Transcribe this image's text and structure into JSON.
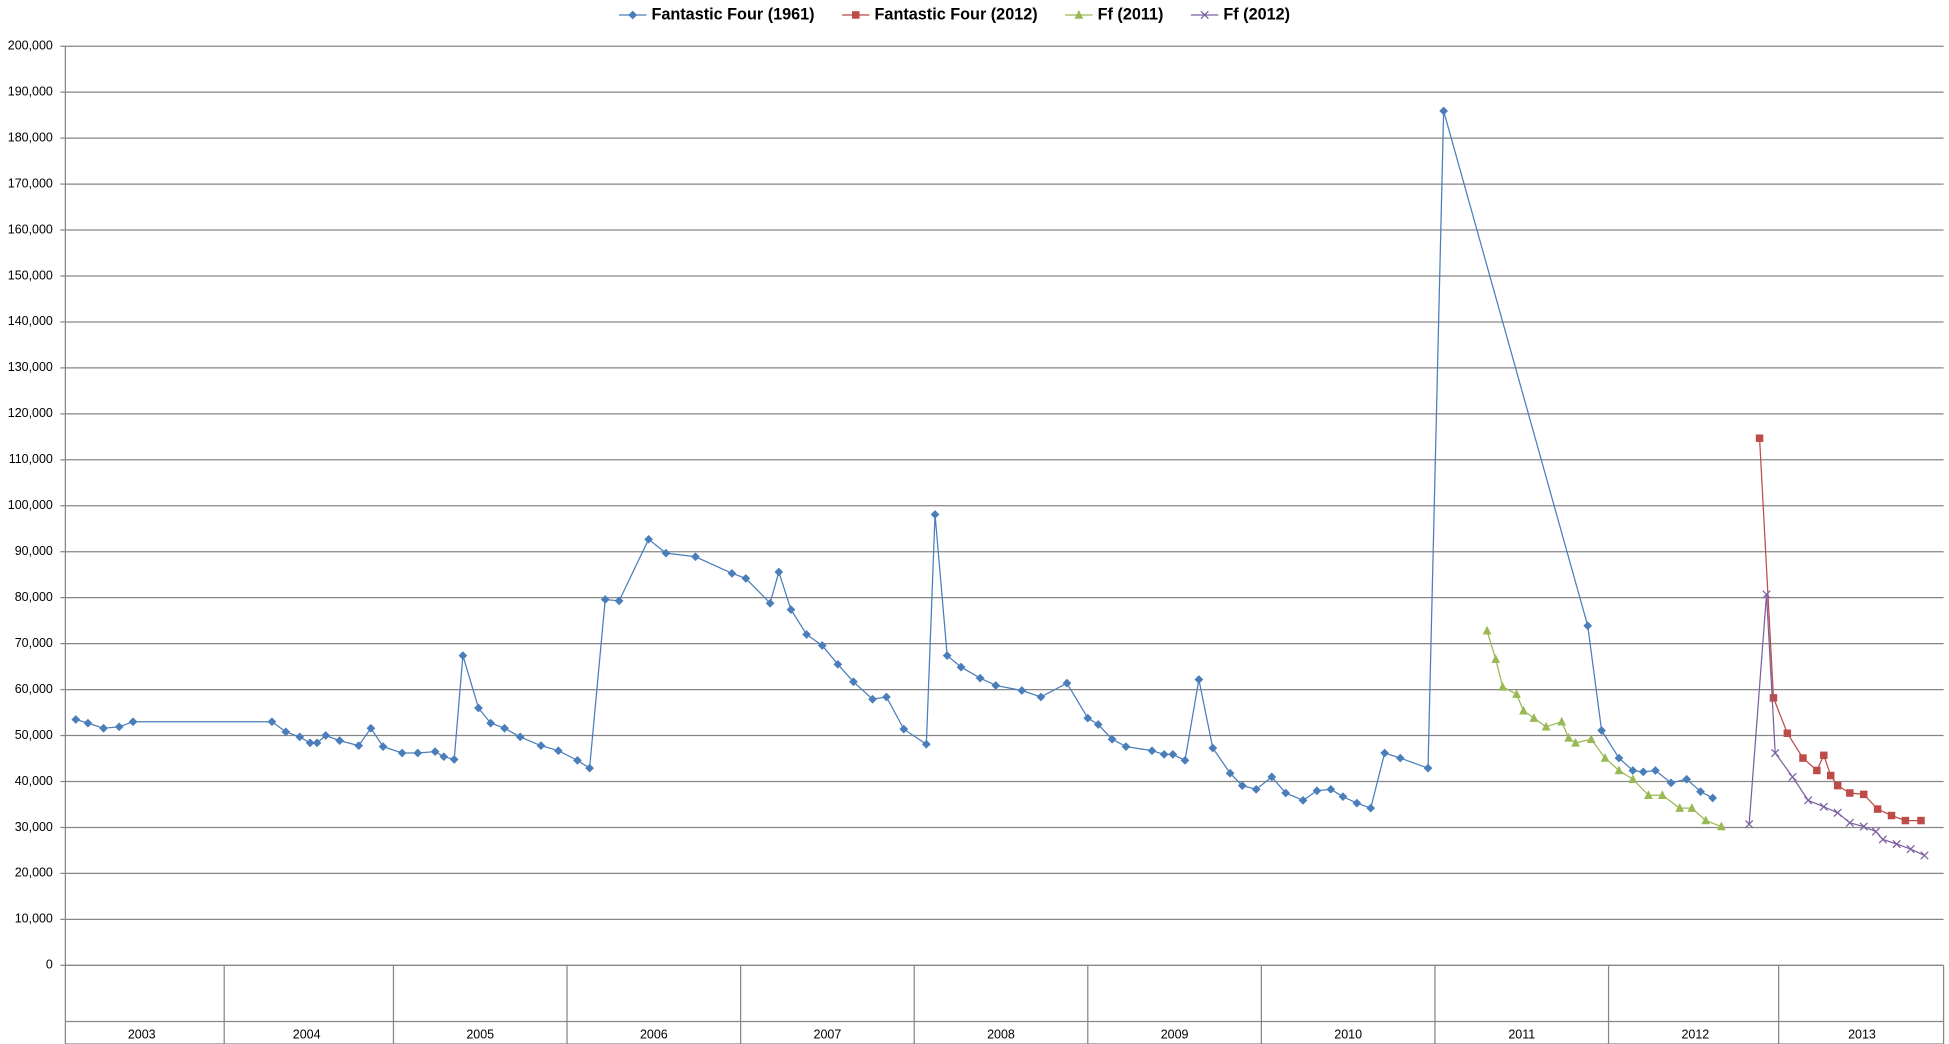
{
  "chart_data": {
    "type": "line",
    "xlim": [
      2003.11,
      2013.93
    ],
    "xticks": [
      {
        "value": 2003.55,
        "label": "2003"
      },
      {
        "value": 2004.5,
        "label": "2004"
      },
      {
        "value": 2005.5,
        "label": "2005"
      },
      {
        "value": 2006.5,
        "label": "2006"
      },
      {
        "value": 2007.5,
        "label": "2007"
      },
      {
        "value": 2008.5,
        "label": "2008"
      },
      {
        "value": 2009.5,
        "label": "2009"
      },
      {
        "value": 2010.5,
        "label": "2010"
      },
      {
        "value": 2011.5,
        "label": "2011"
      },
      {
        "value": 2012.5,
        "label": "2012"
      },
      {
        "value": 2013.46,
        "label": "2013"
      }
    ],
    "ylim": [
      0,
      200000
    ],
    "yticks": [
      0,
      {
        "value": 10000,
        "label": "10,000"
      },
      {
        "value": 20000,
        "label": "20,000"
      },
      {
        "value": 30000,
        "label": "30,000"
      },
      {
        "value": 40000,
        "label": "40,000"
      },
      {
        "value": 50000,
        "label": "50,000"
      },
      {
        "value": 60000,
        "label": "60,000"
      },
      {
        "value": 70000,
        "label": "70,000"
      },
      {
        "value": 80000,
        "label": "80,000"
      },
      {
        "value": 90000,
        "label": "90,000"
      },
      {
        "value": 100000,
        "label": "100,000"
      },
      {
        "value": 110000,
        "label": "110,000"
      },
      {
        "value": 120000,
        "label": "120,000"
      },
      {
        "value": 130000,
        "label": "130,000"
      },
      {
        "value": 140000,
        "label": "140,000"
      },
      {
        "value": 150000,
        "label": "150,000"
      },
      {
        "value": 160000,
        "label": "160,000"
      },
      {
        "value": 170000,
        "label": "170,000"
      },
      {
        "value": 180000,
        "label": "180,000"
      },
      {
        "value": 190000,
        "label": "190,000"
      },
      {
        "value": 200000,
        "label": "200,000"
      }
    ],
    "grid": true,
    "legend": "top",
    "series": [
      {
        "name": "Fantastic Four (1961)",
        "color": "#4a7ebb",
        "marker": "diamond",
        "x": [
          2003.17,
          2003.24,
          2003.33,
          2003.42,
          2003.5,
          2004.3,
          2004.38,
          2004.46,
          2004.52,
          2004.56,
          2004.61,
          2004.69,
          2004.8,
          2004.87,
          2004.94,
          2005.05,
          2005.14,
          2005.24,
          2005.29,
          2005.35,
          2005.4,
          2005.49,
          2005.56,
          2005.64,
          2005.73,
          2005.85,
          2005.95,
          2006.06,
          2006.13,
          2006.22,
          2006.3,
          2006.47,
          2006.57,
          2006.74,
          2006.95,
          2007.03,
          2007.17,
          2007.22,
          2007.29,
          2007.38,
          2007.47,
          2007.56,
          2007.65,
          2007.76,
          2007.84,
          2007.94,
          2008.07,
          2008.12,
          2008.19,
          2008.27,
          2008.38,
          2008.47,
          2008.62,
          2008.73,
          2008.88,
          2009.0,
          2009.06,
          2009.14,
          2009.22,
          2009.37,
          2009.44,
          2009.49,
          2009.56,
          2009.64,
          2009.72,
          2009.82,
          2009.89,
          2009.97,
          2010.06,
          2010.14,
          2010.24,
          2010.32,
          2010.4,
          2010.47,
          2010.55,
          2010.63,
          2010.71,
          2010.8,
          2010.96,
          2011.05,
          2011.88,
          2011.96,
          2012.06,
          2012.14,
          2012.2,
          2012.27,
          2012.36,
          2012.45,
          2012.53,
          2012.6
        ],
        "values": [
          53500,
          52700,
          51600,
          51900,
          53000,
          53000,
          50800,
          49700,
          48400,
          48400,
          50000,
          48900,
          47800,
          51600,
          47600,
          46200,
          46200,
          46500,
          45400,
          44800,
          67400,
          56000,
          52700,
          51600,
          49700,
          47800,
          46700,
          44600,
          42900,
          79600,
          79300,
          92700,
          89700,
          88900,
          85300,
          84200,
          78800,
          85600,
          77400,
          72000,
          69600,
          65500,
          61700,
          57900,
          58400,
          51400,
          48100,
          98100,
          67400,
          64900,
          62500,
          60900,
          59800,
          58400,
          61400,
          53800,
          52400,
          49200,
          47600,
          46700,
          45900,
          45900,
          44600,
          62200,
          47300,
          41800,
          39100,
          38300,
          41000,
          37500,
          35900,
          38000,
          38300,
          36700,
          35300,
          34200,
          46200,
          45100,
          42900,
          185900,
          73900,
          51100,
          45100,
          42400,
          42100,
          42400,
          39700,
          40500,
          37800,
          36400
        ]
      },
      {
        "name": "Fantastic Four (2012)",
        "color": "#be4b48",
        "marker": "square",
        "x": [
          2012.87,
          2012.95,
          2013.03,
          2013.12,
          2013.2,
          2013.24,
          2013.28,
          2013.32,
          2013.39,
          2013.47,
          2013.55,
          2013.63,
          2013.71,
          2013.8
        ],
        "values": [
          114700,
          58200,
          50500,
          45100,
          42400,
          45700,
          41300,
          39100,
          37500,
          37200,
          34000,
          32600,
          31500,
          31500
        ]
      },
      {
        "name": "Ff (2011)",
        "color": "#98b954",
        "marker": "triangle",
        "x": [
          2011.3,
          2011.35,
          2011.39,
          2011.47,
          2011.51,
          2011.57,
          2011.64,
          2011.73,
          2011.77,
          2011.81,
          2011.9,
          2011.98,
          2012.06,
          2012.14,
          2012.23,
          2012.31,
          2012.41,
          2012.48,
          2012.56,
          2012.65
        ],
        "values": [
          72800,
          66600,
          60600,
          59000,
          55400,
          53800,
          51900,
          53000,
          49500,
          48400,
          49200,
          45100,
          42400,
          40500,
          37000,
          37000,
          34200,
          34200,
          31500,
          30200
        ]
      },
      {
        "name": "Ff (2012)",
        "color": "#7d60a0",
        "marker": "x",
        "x": [
          2012.81,
          2012.91,
          2012.96,
          2013.06,
          2013.15,
          2013.24,
          2013.32,
          2013.39,
          2013.47,
          2013.54,
          2013.58,
          2013.66,
          2013.74,
          2013.82
        ],
        "values": [
          30700,
          80700,
          46200,
          41000,
          35900,
          34500,
          33200,
          31000,
          30200,
          29100,
          27400,
          26400,
          25300,
          23900
        ]
      }
    ]
  }
}
